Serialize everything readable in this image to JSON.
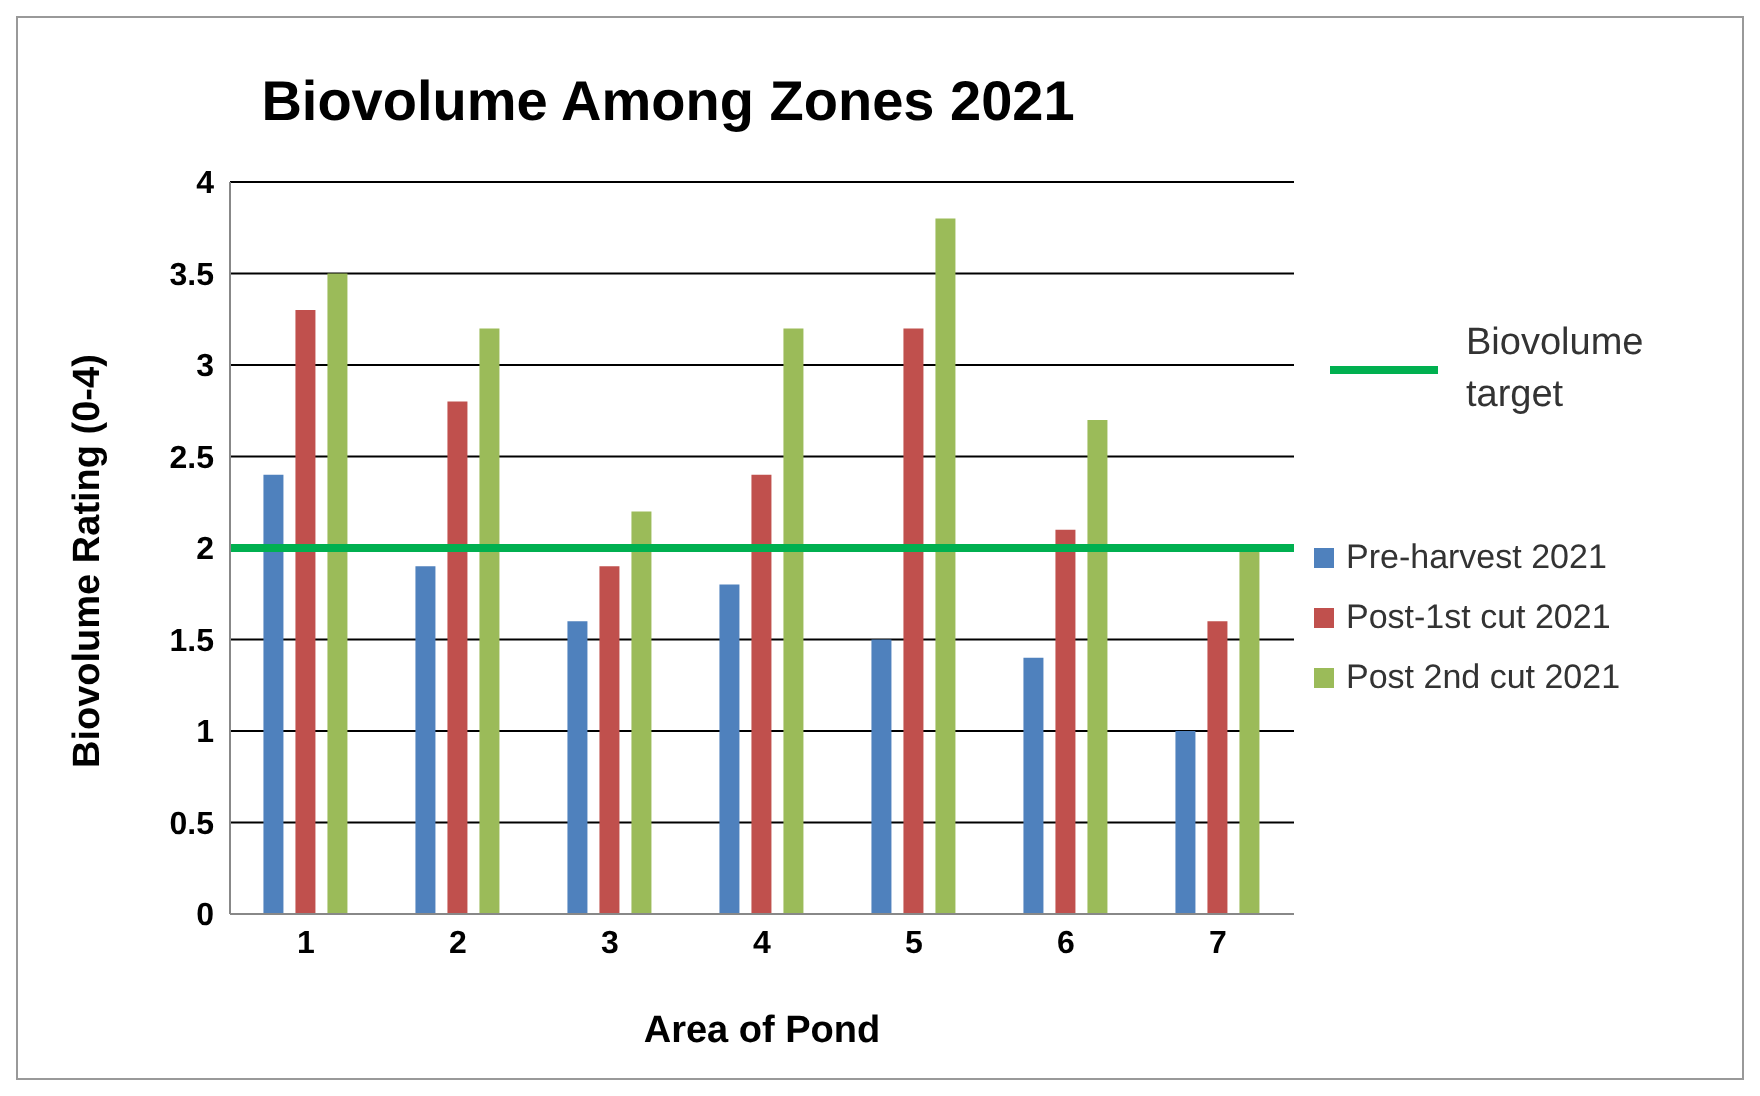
{
  "chart_data": {
    "type": "bar",
    "title": "Biovolume Among Zones 2021",
    "xlabel": "Area of Pond",
    "ylabel": "Biovolume Rating (0-4)",
    "categories": [
      "1",
      "2",
      "3",
      "4",
      "5",
      "6",
      "7"
    ],
    "series": [
      {
        "name": "Pre-harvest 2021",
        "color": "#4f81bd",
        "values": [
          2.4,
          1.9,
          1.6,
          1.8,
          1.5,
          1.4,
          1.0
        ]
      },
      {
        "name": "Post-1st cut 2021",
        "color": "#c0504d",
        "values": [
          3.3,
          2.8,
          1.9,
          2.4,
          3.2,
          2.1,
          1.6
        ]
      },
      {
        "name": "Post 2nd cut 2021",
        "color": "#9bbb59",
        "values": [
          3.5,
          3.2,
          2.2,
          3.2,
          3.8,
          2.7,
          2.0
        ]
      }
    ],
    "ylim": [
      0,
      4
    ],
    "yticks": [
      0,
      0.5,
      1,
      1.5,
      2,
      2.5,
      3,
      3.5,
      4
    ],
    "grid": "y",
    "legend": "right",
    "ref_lines": [
      {
        "axis": "y",
        "value": 2,
        "label": "Biovolume target",
        "color": "#00b050"
      }
    ]
  }
}
